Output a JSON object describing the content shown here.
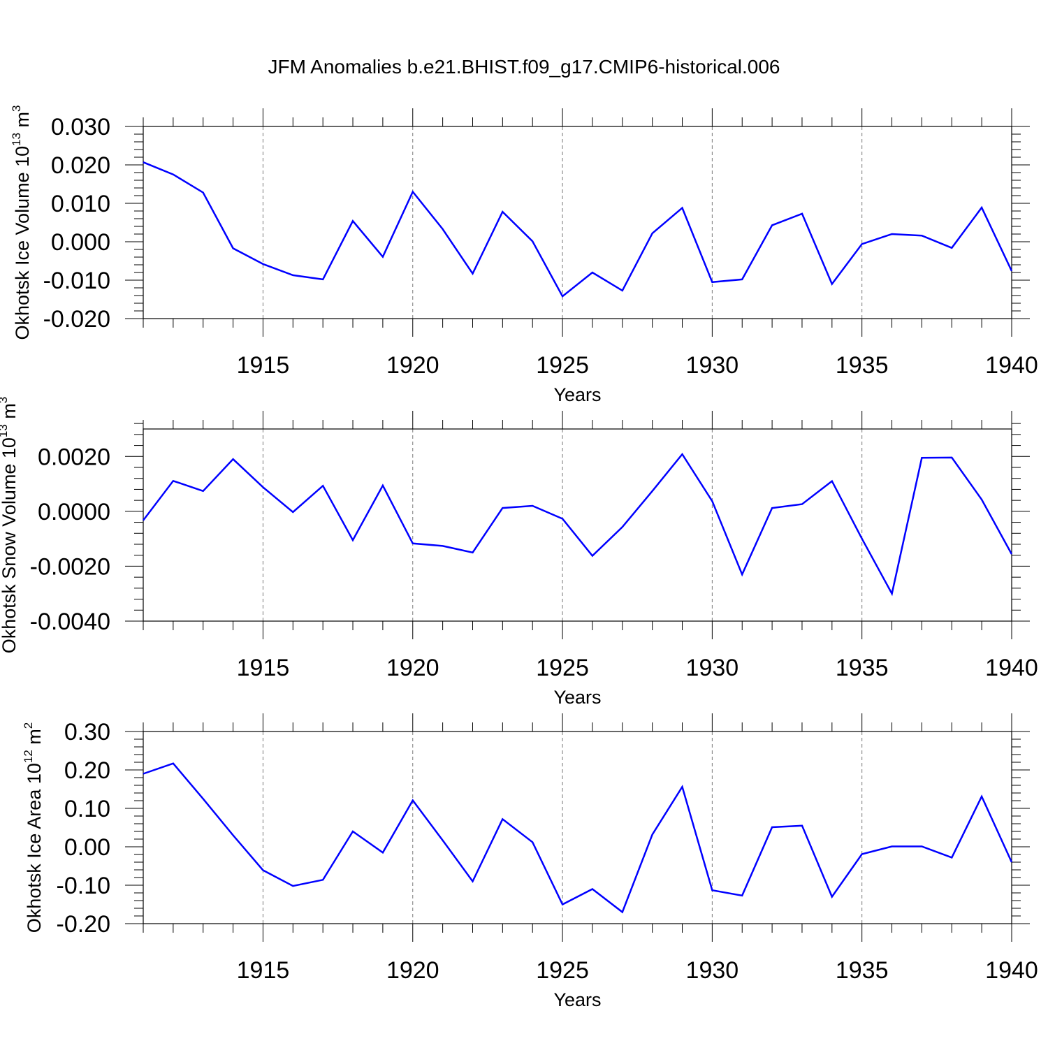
{
  "title": "JFM Anomalies b.e21.BHIST.f09_g17.CMIP6-historical.006",
  "series_color": "#0000ff",
  "chart_data": [
    {
      "type": "line",
      "ylabel": "Okhotsk Ice Volume 10",
      "ylabel_exp": "13",
      "ylabel_unit": " m",
      "ylabel_unit_exp": "3",
      "xlabel": "Years",
      "xlim": [
        1911,
        1940
      ],
      "ylim": [
        -0.02,
        0.03
      ],
      "yticks": [
        -0.02,
        -0.01,
        0.0,
        0.01,
        0.02,
        0.03
      ],
      "ytick_labels": [
        "-0.020",
        "-0.010",
        "0.000",
        "0.010",
        "0.020",
        "0.030"
      ],
      "xticks": [
        1915,
        1920,
        1925,
        1930,
        1935,
        1940
      ],
      "xtick_labels": [
        "1915",
        "1920",
        "1925",
        "1930",
        "1935",
        "1940"
      ],
      "grid": "dashed vertical at major x ticks",
      "x": [
        1911,
        1912,
        1913,
        1914,
        1915,
        1916,
        1917,
        1918,
        1919,
        1920,
        1921,
        1922,
        1923,
        1924,
        1925,
        1926,
        1927,
        1928,
        1929,
        1930,
        1931,
        1932,
        1933,
        1934,
        1935,
        1936,
        1937,
        1938,
        1939,
        1940
      ],
      "y": [
        0.0207,
        0.0175,
        0.0128,
        -0.0017,
        -0.0058,
        -0.0087,
        -0.0098,
        0.0054,
        -0.0039,
        0.013,
        0.0033,
        -0.0083,
        0.0078,
        0.0001,
        -0.0142,
        -0.008,
        -0.0127,
        0.0022,
        0.0088,
        -0.0105,
        -0.0098,
        0.0043,
        0.0073,
        -0.011,
        -0.0006,
        0.002,
        0.0016,
        -0.0016,
        0.0089,
        -0.0076
      ]
    },
    {
      "type": "line",
      "ylabel": "Okhotsk Snow Volume 10",
      "ylabel_exp": "13",
      "ylabel_unit": " m",
      "ylabel_unit_exp": "3",
      "xlabel": "Years",
      "xlim": [
        1911,
        1940
      ],
      "ylim": [
        -0.004,
        0.003
      ],
      "yticks": [
        -0.004,
        -0.002,
        0.0,
        0.002
      ],
      "ytick_labels": [
        "-0.0040",
        "-0.0020",
        "0.0000",
        "0.0020"
      ],
      "xticks": [
        1915,
        1920,
        1925,
        1930,
        1935,
        1940
      ],
      "xtick_labels": [
        "1915",
        "1920",
        "1925",
        "1930",
        "1935",
        "1940"
      ],
      "grid": "dashed vertical at major x ticks",
      "x": [
        1911,
        1912,
        1913,
        1914,
        1915,
        1916,
        1917,
        1918,
        1919,
        1920,
        1921,
        1922,
        1923,
        1924,
        1925,
        1926,
        1927,
        1928,
        1929,
        1930,
        1931,
        1932,
        1933,
        1934,
        1935,
        1936,
        1937,
        1938,
        1939,
        1940
      ],
      "y": [
        -0.00033,
        0.00111,
        0.00074,
        0.0019,
        0.00088,
        -3e-05,
        0.00093,
        -0.00105,
        0.00094,
        -0.00117,
        -0.00126,
        -0.0015,
        0.00012,
        0.0002,
        -0.00027,
        -0.00162,
        -0.00057,
        0.00074,
        0.00208,
        0.00037,
        -0.0023,
        0.00012,
        0.00026,
        0.0011,
        -0.001,
        -0.003,
        0.00195,
        0.00196,
        0.00043,
        -0.00156
      ]
    },
    {
      "type": "line",
      "ylabel": "Okhotsk Ice Area 10",
      "ylabel_exp": "12",
      "ylabel_unit": " m",
      "ylabel_unit_exp": "2",
      "xlabel": "Years",
      "xlim": [
        1911,
        1940
      ],
      "ylim": [
        -0.2,
        0.3
      ],
      "yticks": [
        -0.2,
        -0.1,
        0.0,
        0.1,
        0.2,
        0.3
      ],
      "ytick_labels": [
        "-0.20",
        "-0.10",
        "0.00",
        "0.10",
        "0.20",
        "0.30"
      ],
      "xticks": [
        1915,
        1920,
        1925,
        1930,
        1935,
        1940
      ],
      "xtick_labels": [
        "1915",
        "1920",
        "1925",
        "1930",
        "1935",
        "1940"
      ],
      "grid": "dashed vertical at major x ticks",
      "x": [
        1911,
        1912,
        1913,
        1914,
        1915,
        1916,
        1917,
        1918,
        1919,
        1920,
        1921,
        1922,
        1923,
        1924,
        1925,
        1926,
        1927,
        1928,
        1929,
        1930,
        1931,
        1932,
        1933,
        1934,
        1935,
        1936,
        1937,
        1938,
        1939,
        1940
      ],
      "y": [
        0.19,
        0.217,
        0.125,
        0.03,
        -0.061,
        -0.102,
        -0.086,
        0.04,
        -0.015,
        0.121,
        0.017,
        -0.09,
        0.072,
        0.012,
        -0.15,
        -0.11,
        -0.17,
        0.032,
        0.156,
        -0.113,
        -0.127,
        0.051,
        0.055,
        -0.13,
        -0.019,
        0.001,
        0.001,
        -0.028,
        0.131,
        -0.04
      ]
    }
  ]
}
